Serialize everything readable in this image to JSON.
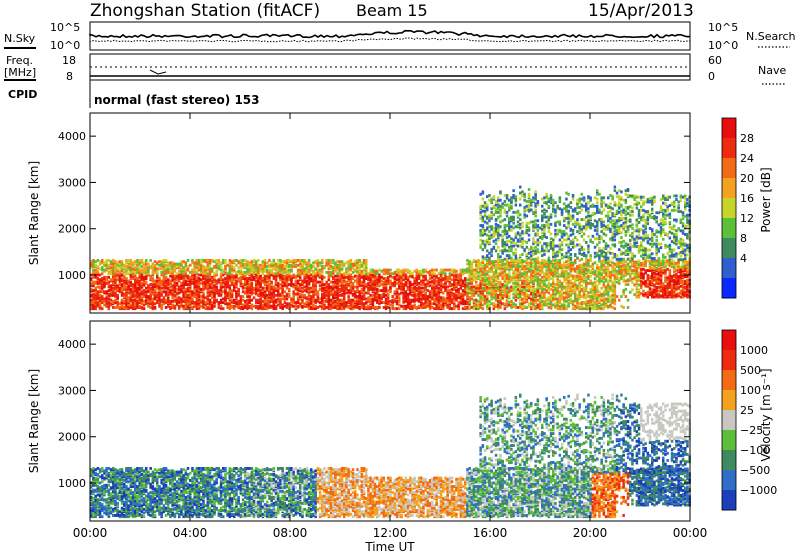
{
  "header": {
    "station": "Zhongshan Station (fitACF)",
    "beam": "Beam 15",
    "date": "15/Apr/2013"
  },
  "top_panels": {
    "nsky_label": "N.Sky",
    "nsky_ticks": [
      "10^5",
      "10^0"
    ],
    "nsearch_label": "N.Search",
    "nsearch_ticks": [
      "10^5",
      "10^0"
    ],
    "freq_label": "Freq.",
    "freq_unit": "[MHz]",
    "freq_ticks": [
      "18",
      "8"
    ],
    "nave_label": "Nave",
    "nave_ticks": [
      "60",
      "0"
    ],
    "cpid_label": "CPID",
    "cpid_text": "normal (fast stereo) 153"
  },
  "colors": {
    "power": [
      "#0a28ff",
      "#2f5fcf",
      "#3f8a5e",
      "#5bbf3a",
      "#c7d42a",
      "#f2a21e",
      "#f26a14",
      "#ee2a10",
      "#e80e0e"
    ],
    "velocity": [
      "#1a3fb8",
      "#2f6fc8",
      "#3f8a5e",
      "#5bbf3a",
      "#c8c8c0",
      "#f2a21e",
      "#f26a14",
      "#ee2a10",
      "#e80e0e"
    ]
  },
  "chart_data": [
    {
      "type": "heatmap",
      "ylabel": "Slant Range [km]",
      "xlabel": "",
      "ylim": [
        180,
        4500
      ],
      "yticks": [
        "4000",
        "3000",
        "2000",
        "1000"
      ],
      "colorbar_label": "Power [dB]",
      "colorbar_ticks": [
        "28",
        "24",
        "20",
        "16",
        "12",
        "8",
        "4"
      ]
    },
    {
      "type": "heatmap",
      "ylabel": "Slant Range [km]",
      "xlabel": "Time UT",
      "ylim": [
        180,
        4500
      ],
      "yticks": [
        "4000",
        "3000",
        "2000",
        "1000"
      ],
      "xticks": [
        "00:00",
        "04:00",
        "08:00",
        "12:00",
        "16:00",
        "20:00",
        "00:00"
      ],
      "colorbar_label": "Velocity [m s⁻¹]",
      "colorbar_ticks": [
        "1000",
        "500",
        "100",
        "25",
        "−25",
        "−100",
        "−500",
        "−1000"
      ]
    }
  ]
}
